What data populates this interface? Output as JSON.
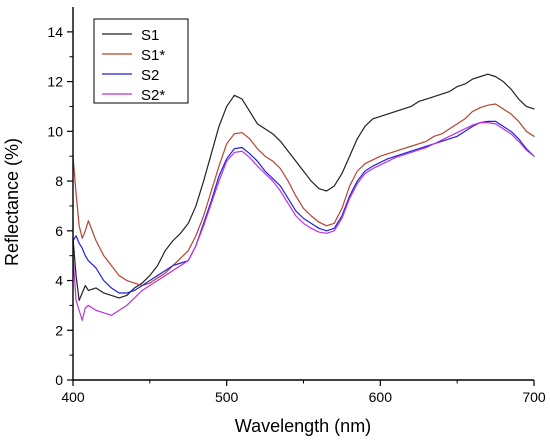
{
  "chart_data": {
    "type": "line",
    "title": "",
    "xlabel": "Wavelength (nm)",
    "ylabel": "Reflectance (%)",
    "xlim": [
      400,
      700
    ],
    "ylim": [
      0,
      15
    ],
    "x_ticks": [
      400,
      500,
      600,
      700
    ],
    "y_ticks": [
      0,
      2,
      4,
      6,
      8,
      10,
      12,
      14
    ],
    "x_tick_labels": [
      "400",
      "500",
      "600",
      "700"
    ],
    "y_tick_labels": [
      "0",
      "2",
      "4",
      "6",
      "8",
      "10",
      "12",
      "14"
    ],
    "grid": false,
    "legend_position": "top-left",
    "series": [
      {
        "name": "S1",
        "color": "#222222",
        "points": [
          [
            400,
            5.7
          ],
          [
            402,
            4.2
          ],
          [
            404,
            3.2
          ],
          [
            406,
            3.5
          ],
          [
            408,
            3.8
          ],
          [
            410,
            3.6
          ],
          [
            415,
            3.7
          ],
          [
            420,
            3.5
          ],
          [
            425,
            3.4
          ],
          [
            430,
            3.3
          ],
          [
            435,
            3.4
          ],
          [
            440,
            3.7
          ],
          [
            445,
            3.9
          ],
          [
            450,
            4.2
          ],
          [
            455,
            4.6
          ],
          [
            460,
            5.2
          ],
          [
            465,
            5.6
          ],
          [
            470,
            5.9
          ],
          [
            475,
            6.3
          ],
          [
            480,
            7.0
          ],
          [
            485,
            8.0
          ],
          [
            490,
            9.1
          ],
          [
            495,
            10.2
          ],
          [
            500,
            11.0
          ],
          [
            505,
            11.45
          ],
          [
            510,
            11.3
          ],
          [
            515,
            10.8
          ],
          [
            520,
            10.3
          ],
          [
            525,
            10.1
          ],
          [
            530,
            9.9
          ],
          [
            535,
            9.6
          ],
          [
            540,
            9.2
          ],
          [
            545,
            8.8
          ],
          [
            550,
            8.4
          ],
          [
            555,
            8.0
          ],
          [
            560,
            7.7
          ],
          [
            565,
            7.6
          ],
          [
            570,
            7.8
          ],
          [
            575,
            8.3
          ],
          [
            580,
            9.0
          ],
          [
            585,
            9.7
          ],
          [
            590,
            10.2
          ],
          [
            595,
            10.5
          ],
          [
            600,
            10.6
          ],
          [
            605,
            10.7
          ],
          [
            610,
            10.8
          ],
          [
            615,
            10.9
          ],
          [
            620,
            11.0
          ],
          [
            625,
            11.2
          ],
          [
            630,
            11.3
          ],
          [
            635,
            11.4
          ],
          [
            640,
            11.5
          ],
          [
            645,
            11.6
          ],
          [
            650,
            11.8
          ],
          [
            655,
            11.9
          ],
          [
            660,
            12.1
          ],
          [
            665,
            12.2
          ],
          [
            670,
            12.3
          ],
          [
            675,
            12.2
          ],
          [
            680,
            12.0
          ],
          [
            685,
            11.7
          ],
          [
            690,
            11.3
          ],
          [
            695,
            11.0
          ],
          [
            700,
            10.9
          ]
        ]
      },
      {
        "name": "S1*",
        "color": "#b5442f",
        "points": [
          [
            400,
            9.0
          ],
          [
            402,
            7.5
          ],
          [
            404,
            6.2
          ],
          [
            406,
            5.7
          ],
          [
            408,
            6.0
          ],
          [
            410,
            6.4
          ],
          [
            415,
            5.6
          ],
          [
            420,
            5.0
          ],
          [
            425,
            4.6
          ],
          [
            430,
            4.2
          ],
          [
            435,
            4.0
          ],
          [
            440,
            3.9
          ],
          [
            445,
            3.8
          ],
          [
            450,
            3.9
          ],
          [
            455,
            4.1
          ],
          [
            460,
            4.3
          ],
          [
            465,
            4.6
          ],
          [
            470,
            4.9
          ],
          [
            475,
            5.2
          ],
          [
            480,
            5.8
          ],
          [
            485,
            6.6
          ],
          [
            490,
            7.6
          ],
          [
            495,
            8.6
          ],
          [
            500,
            9.5
          ],
          [
            505,
            9.9
          ],
          [
            510,
            9.95
          ],
          [
            515,
            9.7
          ],
          [
            520,
            9.3
          ],
          [
            525,
            9.0
          ],
          [
            530,
            8.8
          ],
          [
            535,
            8.5
          ],
          [
            540,
            8.0
          ],
          [
            545,
            7.4
          ],
          [
            550,
            6.9
          ],
          [
            555,
            6.6
          ],
          [
            560,
            6.35
          ],
          [
            565,
            6.2
          ],
          [
            570,
            6.3
          ],
          [
            575,
            6.9
          ],
          [
            580,
            7.8
          ],
          [
            585,
            8.4
          ],
          [
            590,
            8.7
          ],
          [
            595,
            8.85
          ],
          [
            600,
            9.0
          ],
          [
            605,
            9.1
          ],
          [
            610,
            9.2
          ],
          [
            615,
            9.3
          ],
          [
            620,
            9.4
          ],
          [
            625,
            9.5
          ],
          [
            630,
            9.6
          ],
          [
            635,
            9.8
          ],
          [
            640,
            9.9
          ],
          [
            645,
            10.1
          ],
          [
            650,
            10.3
          ],
          [
            655,
            10.5
          ],
          [
            660,
            10.8
          ],
          [
            665,
            10.95
          ],
          [
            670,
            11.05
          ],
          [
            675,
            11.1
          ],
          [
            680,
            10.9
          ],
          [
            685,
            10.7
          ],
          [
            690,
            10.4
          ],
          [
            695,
            10.0
          ],
          [
            700,
            9.8
          ]
        ]
      },
      {
        "name": "S2",
        "color": "#2222dd",
        "points": [
          [
            400,
            5.6
          ],
          [
            402,
            5.8
          ],
          [
            404,
            5.5
          ],
          [
            406,
            5.3
          ],
          [
            408,
            5.0
          ],
          [
            410,
            4.8
          ],
          [
            415,
            4.5
          ],
          [
            420,
            4.0
          ],
          [
            425,
            3.7
          ],
          [
            430,
            3.5
          ],
          [
            435,
            3.5
          ],
          [
            440,
            3.6
          ],
          [
            445,
            3.8
          ],
          [
            450,
            4.0
          ],
          [
            455,
            4.2
          ],
          [
            460,
            4.4
          ],
          [
            465,
            4.6
          ],
          [
            470,
            4.7
          ],
          [
            475,
            4.8
          ],
          [
            480,
            5.4
          ],
          [
            485,
            6.3
          ],
          [
            490,
            7.2
          ],
          [
            495,
            8.2
          ],
          [
            500,
            8.9
          ],
          [
            505,
            9.3
          ],
          [
            510,
            9.35
          ],
          [
            515,
            9.1
          ],
          [
            520,
            8.8
          ],
          [
            525,
            8.4
          ],
          [
            530,
            8.1
          ],
          [
            535,
            7.8
          ],
          [
            540,
            7.3
          ],
          [
            545,
            6.8
          ],
          [
            550,
            6.5
          ],
          [
            555,
            6.3
          ],
          [
            560,
            6.1
          ],
          [
            565,
            6.0
          ],
          [
            570,
            6.1
          ],
          [
            575,
            6.6
          ],
          [
            580,
            7.4
          ],
          [
            585,
            8.0
          ],
          [
            590,
            8.4
          ],
          [
            595,
            8.6
          ],
          [
            600,
            8.75
          ],
          [
            605,
            8.9
          ],
          [
            610,
            9.0
          ],
          [
            615,
            9.1
          ],
          [
            620,
            9.2
          ],
          [
            625,
            9.3
          ],
          [
            630,
            9.4
          ],
          [
            635,
            9.5
          ],
          [
            640,
            9.6
          ],
          [
            645,
            9.7
          ],
          [
            650,
            9.8
          ],
          [
            655,
            10.0
          ],
          [
            660,
            10.2
          ],
          [
            665,
            10.35
          ],
          [
            670,
            10.4
          ],
          [
            675,
            10.4
          ],
          [
            680,
            10.2
          ],
          [
            685,
            10.0
          ],
          [
            690,
            9.7
          ],
          [
            695,
            9.3
          ],
          [
            700,
            9.0
          ]
        ]
      },
      {
        "name": "S2*",
        "color": "#bb33dd",
        "points": [
          [
            400,
            5.0
          ],
          [
            402,
            3.2
          ],
          [
            404,
            2.8
          ],
          [
            406,
            2.4
          ],
          [
            408,
            2.9
          ],
          [
            410,
            3.0
          ],
          [
            415,
            2.8
          ],
          [
            420,
            2.7
          ],
          [
            425,
            2.6
          ],
          [
            430,
            2.8
          ],
          [
            435,
            3.0
          ],
          [
            440,
            3.3
          ],
          [
            445,
            3.6
          ],
          [
            450,
            3.8
          ],
          [
            455,
            4.0
          ],
          [
            460,
            4.2
          ],
          [
            465,
            4.4
          ],
          [
            470,
            4.6
          ],
          [
            475,
            4.8
          ],
          [
            480,
            5.4
          ],
          [
            485,
            6.2
          ],
          [
            490,
            7.1
          ],
          [
            495,
            8.0
          ],
          [
            500,
            8.8
          ],
          [
            505,
            9.15
          ],
          [
            510,
            9.2
          ],
          [
            515,
            8.95
          ],
          [
            520,
            8.6
          ],
          [
            525,
            8.3
          ],
          [
            530,
            8.0
          ],
          [
            535,
            7.6
          ],
          [
            540,
            7.1
          ],
          [
            545,
            6.6
          ],
          [
            550,
            6.3
          ],
          [
            555,
            6.1
          ],
          [
            560,
            5.95
          ],
          [
            565,
            5.9
          ],
          [
            570,
            6.0
          ],
          [
            575,
            6.5
          ],
          [
            580,
            7.3
          ],
          [
            585,
            7.9
          ],
          [
            590,
            8.3
          ],
          [
            595,
            8.5
          ],
          [
            600,
            8.65
          ],
          [
            605,
            8.8
          ],
          [
            610,
            8.95
          ],
          [
            615,
            9.05
          ],
          [
            620,
            9.15
          ],
          [
            625,
            9.25
          ],
          [
            630,
            9.35
          ],
          [
            635,
            9.5
          ],
          [
            640,
            9.65
          ],
          [
            645,
            9.8
          ],
          [
            650,
            9.95
          ],
          [
            655,
            10.1
          ],
          [
            660,
            10.25
          ],
          [
            665,
            10.35
          ],
          [
            670,
            10.35
          ],
          [
            675,
            10.3
          ],
          [
            680,
            10.1
          ],
          [
            685,
            9.9
          ],
          [
            690,
            9.6
          ],
          [
            695,
            9.25
          ],
          [
            700,
            9.0
          ]
        ]
      }
    ]
  }
}
